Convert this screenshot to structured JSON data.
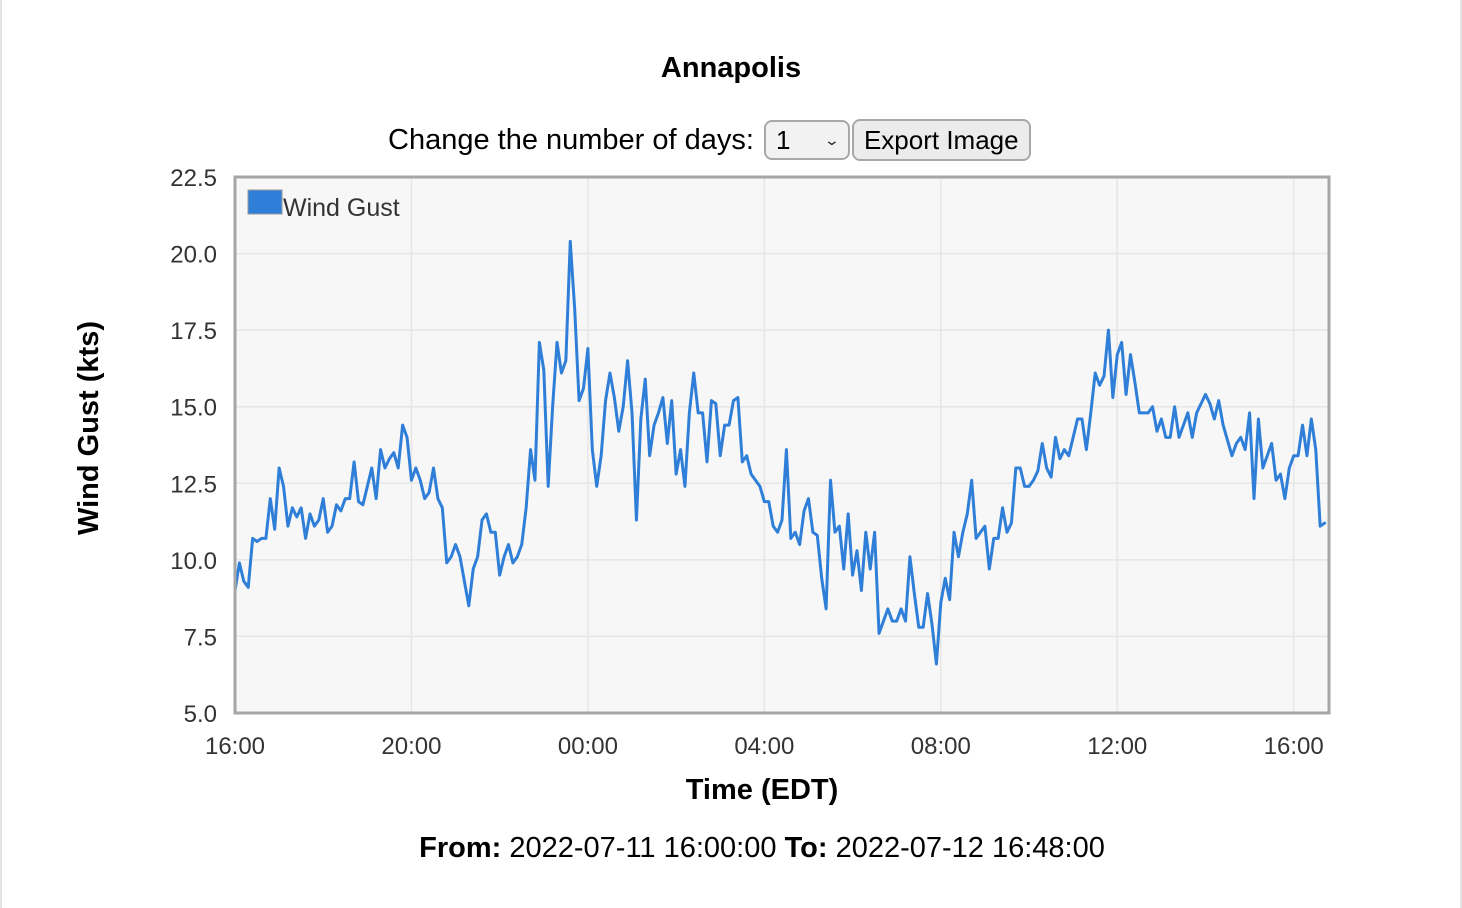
{
  "page": {
    "title": "Annapolis",
    "days_label": "Change the number of days:",
    "days_value": "1",
    "export_label": "Export Image",
    "from_label": "From:",
    "from_value": "2022-07-11 16:00:00",
    "to_label": "To:",
    "to_value": "2022-07-12 16:48:00"
  },
  "colors": {
    "series": "#2f7fd8",
    "plot_background": "#f7f7f7",
    "plot_border": "#a6a6a6",
    "grid": "#e6e6e6"
  },
  "chart_data": {
    "type": "line",
    "title": "",
    "xlabel": "Time (EDT)",
    "ylabel": "Wind Gust (kts)",
    "ylim": [
      5.0,
      22.5
    ],
    "y_ticks": [
      "5.0",
      "7.5",
      "10.0",
      "12.5",
      "15.0",
      "17.5",
      "20.0",
      "22.5"
    ],
    "x_ticks": [
      "16:00",
      "20:00",
      "00:00",
      "04:00",
      "08:00",
      "12:00",
      "16:00"
    ],
    "x_start": "2022-07-11 16:00",
    "x_end": "2022-07-12 16:48",
    "x_step_minutes": 6,
    "grid": true,
    "legend": "top-left",
    "series": [
      {
        "name": "Wind Gust",
        "values": [
          9.0,
          9.9,
          9.3,
          9.1,
          10.7,
          10.6,
          10.7,
          10.7,
          12.0,
          11.0,
          13.0,
          12.4,
          11.1,
          11.7,
          11.4,
          11.7,
          10.7,
          11.5,
          11.1,
          11.3,
          12.0,
          10.9,
          11.1,
          11.8,
          11.6,
          12.0,
          12.0,
          13.2,
          11.9,
          11.8,
          12.4,
          13.0,
          12.0,
          13.6,
          13.0,
          13.3,
          13.5,
          13.0,
          14.4,
          14.0,
          12.6,
          13.0,
          12.6,
          12.0,
          12.2,
          13.0,
          12.0,
          11.7,
          9.9,
          10.1,
          10.5,
          10.1,
          9.3,
          8.5,
          9.7,
          10.1,
          11.3,
          11.5,
          10.9,
          10.9,
          9.5,
          10.1,
          10.5,
          9.9,
          10.1,
          10.5,
          11.7,
          13.6,
          12.6,
          17.1,
          16.2,
          12.4,
          15.0,
          17.1,
          16.1,
          16.5,
          20.4,
          18.2,
          15.2,
          15.6,
          16.9,
          13.6,
          12.4,
          13.4,
          15.2,
          16.1,
          15.3,
          14.2,
          15.0,
          16.5,
          14.8,
          11.3,
          14.6,
          15.9,
          13.4,
          14.4,
          14.8,
          15.3,
          13.8,
          15.2,
          12.8,
          13.6,
          12.4,
          14.8,
          16.1,
          14.8,
          14.8,
          13.2,
          15.2,
          15.1,
          13.4,
          14.4,
          14.4,
          15.2,
          15.3,
          13.2,
          13.4,
          12.8,
          12.6,
          12.4,
          11.9,
          11.9,
          11.1,
          10.9,
          11.3,
          13.6,
          10.7,
          10.9,
          10.5,
          11.6,
          12.0,
          10.9,
          10.8,
          9.4,
          8.4,
          12.6,
          10.9,
          11.1,
          9.7,
          11.5,
          9.5,
          10.3,
          9.0,
          10.9,
          9.7,
          10.9,
          7.6,
          8.0,
          8.4,
          8.0,
          8.0,
          8.4,
          8.0,
          10.1,
          8.9,
          7.8,
          7.8,
          8.9,
          7.9,
          6.6,
          8.6,
          9.4,
          8.7,
          10.9,
          10.1,
          10.9,
          11.5,
          12.6,
          10.7,
          10.9,
          11.1,
          9.7,
          10.7,
          10.7,
          11.7,
          10.9,
          11.2,
          13.0,
          13.0,
          12.4,
          12.4,
          12.6,
          12.9,
          13.8,
          13.0,
          12.7,
          14.0,
          13.3,
          13.6,
          13.4,
          14.0,
          14.6,
          14.6,
          13.6,
          14.8,
          16.1,
          15.7,
          16.0,
          17.5,
          15.3,
          16.7,
          17.1,
          15.4,
          16.7,
          15.8,
          14.8,
          14.8,
          14.8,
          15.0,
          14.2,
          14.6,
          14.0,
          14.0,
          15.0,
          14.0,
          14.4,
          14.8,
          14.0,
          14.8,
          15.1,
          15.4,
          15.1,
          14.6,
          15.2,
          14.4,
          13.9,
          13.4,
          13.8,
          14.0,
          13.6,
          14.8,
          12.0,
          14.6,
          13.0,
          13.4,
          13.8,
          12.6,
          12.8,
          12.0,
          13.0,
          13.4,
          13.4,
          14.4,
          13.4,
          14.6,
          13.6,
          11.1,
          11.2
        ]
      }
    ]
  }
}
